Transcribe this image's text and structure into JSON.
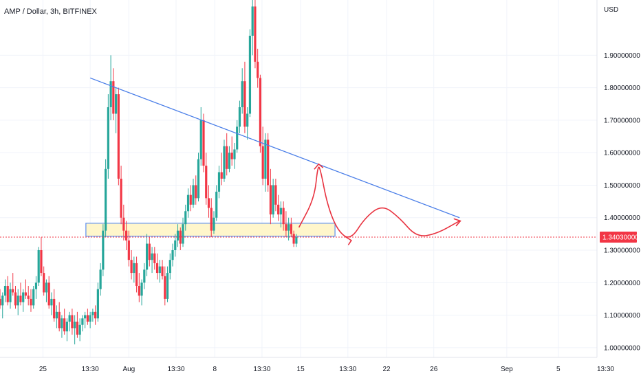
{
  "chart_data": {
    "type": "candlestick",
    "title": "AMP / Dollar, 3h, BITFINEX",
    "currency_label": "USD",
    "ylim": [
      0.97,
      2.07
    ],
    "y_ticks": [
      {
        "value": 1.0,
        "label": "1.00000000"
      },
      {
        "value": 1.1,
        "label": "1.10000000"
      },
      {
        "value": 1.2,
        "label": "1.20000000"
      },
      {
        "value": 1.3,
        "label": "1.30000000"
      },
      {
        "value": 1.4,
        "label": "1.40000000"
      },
      {
        "value": 1.5,
        "label": "1.50000000"
      },
      {
        "value": 1.6,
        "label": "1.60000000"
      },
      {
        "value": 1.7,
        "label": "1.70000000"
      },
      {
        "value": 1.8,
        "label": "1.80000000"
      },
      {
        "value": 1.9,
        "label": "1.90000000"
      }
    ],
    "xlim": [
      0,
      69.5
    ],
    "x_ticks": [
      {
        "t": 5.0,
        "label": "25"
      },
      {
        "t": 10.5,
        "label": "13:30"
      },
      {
        "t": 15.0,
        "label": "Aug"
      },
      {
        "t": 20.5,
        "label": "13:30"
      },
      {
        "t": 25.0,
        "label": "8"
      },
      {
        "t": 30.5,
        "label": "13:30"
      },
      {
        "t": 35.0,
        "label": "15"
      },
      {
        "t": 40.5,
        "label": "13:30"
      },
      {
        "t": 45.0,
        "label": "22"
      },
      {
        "t": 50.5,
        "label": "26"
      },
      {
        "t": 59.0,
        "label": "Sep"
      },
      {
        "t": 65.0,
        "label": "5"
      },
      {
        "t": 70.5,
        "label": "13:30"
      }
    ],
    "current_price": {
      "value": 1.3403,
      "label": "1.34030000",
      "color": "#f23645"
    },
    "colors": {
      "up": "#26a69a",
      "down": "#f23645",
      "trendline": "#4a7ee8",
      "zone_border": "#5b8def",
      "zone_fill": "#fff4c2",
      "annotation": "#e8323f"
    },
    "candles": [
      [
        0.0,
        1.15,
        1.18,
        1.12,
        1.13
      ],
      [
        0.3,
        1.13,
        1.17,
        1.09,
        1.16
      ],
      [
        0.6,
        1.16,
        1.21,
        1.14,
        1.19
      ],
      [
        0.9,
        1.19,
        1.22,
        1.13,
        1.14
      ],
      [
        1.2,
        1.14,
        1.2,
        1.12,
        1.18
      ],
      [
        1.5,
        1.18,
        1.23,
        1.16,
        1.17
      ],
      [
        1.8,
        1.17,
        1.19,
        1.12,
        1.13
      ],
      [
        2.1,
        1.13,
        1.18,
        1.1,
        1.16
      ],
      [
        2.4,
        1.16,
        1.2,
        1.13,
        1.14
      ],
      [
        2.7,
        1.14,
        1.18,
        1.11,
        1.17
      ],
      [
        3.0,
        1.17,
        1.21,
        1.15,
        1.16
      ],
      [
        3.3,
        1.16,
        1.19,
        1.13,
        1.15
      ],
      [
        3.6,
        1.15,
        1.18,
        1.11,
        1.13
      ],
      [
        3.9,
        1.13,
        1.19,
        1.12,
        1.18
      ],
      [
        4.2,
        1.18,
        1.22,
        1.15,
        1.2
      ],
      [
        4.5,
        1.2,
        1.31,
        1.19,
        1.3
      ],
      [
        4.8,
        1.3,
        1.34,
        1.22,
        1.23
      ],
      [
        5.1,
        1.23,
        1.25,
        1.16,
        1.17
      ],
      [
        5.4,
        1.17,
        1.21,
        1.14,
        1.2
      ],
      [
        5.7,
        1.2,
        1.22,
        1.12,
        1.13
      ],
      [
        6.0,
        1.13,
        1.17,
        1.1,
        1.15
      ],
      [
        6.3,
        1.15,
        1.18,
        1.08,
        1.09
      ],
      [
        6.6,
        1.09,
        1.13,
        1.06,
        1.11
      ],
      [
        6.9,
        1.11,
        1.14,
        1.05,
        1.06
      ],
      [
        7.2,
        1.06,
        1.1,
        1.03,
        1.09
      ],
      [
        7.5,
        1.09,
        1.12,
        1.04,
        1.05
      ],
      [
        7.8,
        1.05,
        1.09,
        1.02,
        1.08
      ],
      [
        8.1,
        1.08,
        1.11,
        1.05,
        1.1
      ],
      [
        8.4,
        1.1,
        1.12,
        1.04,
        1.06
      ],
      [
        8.7,
        1.06,
        1.1,
        1.01,
        1.08
      ],
      [
        9.0,
        1.08,
        1.11,
        1.03,
        1.04
      ],
      [
        9.3,
        1.04,
        1.09,
        1.02,
        1.07
      ],
      [
        9.6,
        1.07,
        1.1,
        1.05,
        1.09
      ],
      [
        9.9,
        1.09,
        1.11,
        1.06,
        1.1
      ],
      [
        10.2,
        1.1,
        1.12,
        1.07,
        1.08
      ],
      [
        10.5,
        1.08,
        1.11,
        1.06,
        1.1
      ],
      [
        10.8,
        1.1,
        1.12,
        1.08,
        1.11
      ],
      [
        11.1,
        1.11,
        1.13,
        1.07,
        1.09
      ],
      [
        11.4,
        1.09,
        1.2,
        1.08,
        1.18
      ],
      [
        11.7,
        1.18,
        1.26,
        1.16,
        1.24
      ],
      [
        12.0,
        1.24,
        1.38,
        1.22,
        1.36
      ],
      [
        12.3,
        1.36,
        1.58,
        1.34,
        1.55
      ],
      [
        12.6,
        1.55,
        1.78,
        1.52,
        1.74
      ],
      [
        12.9,
        1.74,
        1.9,
        1.7,
        1.82
      ],
      [
        13.2,
        1.82,
        1.86,
        1.7,
        1.72
      ],
      [
        13.5,
        1.72,
        1.8,
        1.66,
        1.78
      ],
      [
        13.8,
        1.78,
        1.8,
        1.5,
        1.52
      ],
      [
        14.1,
        1.52,
        1.56,
        1.38,
        1.4
      ],
      [
        14.4,
        1.4,
        1.44,
        1.33,
        1.36
      ],
      [
        14.7,
        1.36,
        1.39,
        1.3,
        1.33
      ],
      [
        15.0,
        1.33,
        1.36,
        1.25,
        1.27
      ],
      [
        15.3,
        1.27,
        1.3,
        1.21,
        1.23
      ],
      [
        15.6,
        1.23,
        1.28,
        1.2,
        1.26
      ],
      [
        15.9,
        1.26,
        1.28,
        1.17,
        1.19
      ],
      [
        16.2,
        1.19,
        1.23,
        1.14,
        1.16
      ],
      [
        16.5,
        1.16,
        1.21,
        1.13,
        1.2
      ],
      [
        16.8,
        1.2,
        1.26,
        1.18,
        1.24
      ],
      [
        17.1,
        1.24,
        1.35,
        1.22,
        1.32
      ],
      [
        17.4,
        1.32,
        1.34,
        1.25,
        1.27
      ],
      [
        17.7,
        1.27,
        1.31,
        1.23,
        1.29
      ],
      [
        18.0,
        1.29,
        1.31,
        1.24,
        1.26
      ],
      [
        18.3,
        1.26,
        1.29,
        1.21,
        1.23
      ],
      [
        18.6,
        1.23,
        1.27,
        1.2,
        1.25
      ],
      [
        18.9,
        1.25,
        1.27,
        1.21,
        1.22
      ],
      [
        19.2,
        1.22,
        1.25,
        1.13,
        1.15
      ],
      [
        19.5,
        1.15,
        1.25,
        1.14,
        1.23
      ],
      [
        19.8,
        1.23,
        1.29,
        1.21,
        1.27
      ],
      [
        20.1,
        1.27,
        1.32,
        1.25,
        1.3
      ],
      [
        20.4,
        1.3,
        1.35,
        1.28,
        1.33
      ],
      [
        20.7,
        1.33,
        1.38,
        1.31,
        1.36
      ],
      [
        21.0,
        1.36,
        1.37,
        1.3,
        1.32
      ],
      [
        21.3,
        1.32,
        1.4,
        1.31,
        1.38
      ],
      [
        21.6,
        1.38,
        1.44,
        1.36,
        1.42
      ],
      [
        21.9,
        1.42,
        1.49,
        1.4,
        1.47
      ],
      [
        22.2,
        1.47,
        1.5,
        1.42,
        1.44
      ],
      [
        22.5,
        1.44,
        1.52,
        1.43,
        1.5
      ],
      [
        22.8,
        1.5,
        1.53,
        1.44,
        1.46
      ],
      [
        23.1,
        1.46,
        1.6,
        1.45,
        1.58
      ],
      [
        23.4,
        1.58,
        1.74,
        1.56,
        1.7
      ],
      [
        23.7,
        1.7,
        1.72,
        1.54,
        1.56
      ],
      [
        24.0,
        1.56,
        1.6,
        1.44,
        1.46
      ],
      [
        24.3,
        1.46,
        1.5,
        1.4,
        1.43
      ],
      [
        24.6,
        1.43,
        1.46,
        1.34,
        1.36
      ],
      [
        24.9,
        1.36,
        1.42,
        1.35,
        1.4
      ],
      [
        25.2,
        1.4,
        1.5,
        1.39,
        1.48
      ],
      [
        25.5,
        1.48,
        1.56,
        1.46,
        1.54
      ],
      [
        25.8,
        1.54,
        1.6,
        1.5,
        1.52
      ],
      [
        26.1,
        1.52,
        1.64,
        1.51,
        1.62
      ],
      [
        26.4,
        1.62,
        1.66,
        1.53,
        1.55
      ],
      [
        26.7,
        1.55,
        1.62,
        1.54,
        1.6
      ],
      [
        27.0,
        1.6,
        1.65,
        1.56,
        1.58
      ],
      [
        27.3,
        1.58,
        1.63,
        1.55,
        1.61
      ],
      [
        27.6,
        1.61,
        1.7,
        1.6,
        1.68
      ],
      [
        27.9,
        1.68,
        1.76,
        1.66,
        1.74
      ],
      [
        28.2,
        1.74,
        1.86,
        1.72,
        1.82
      ],
      [
        28.5,
        1.82,
        1.88,
        1.66,
        1.68
      ],
      [
        28.8,
        1.68,
        1.74,
        1.64,
        1.72
      ],
      [
        29.1,
        1.72,
        1.98,
        1.71,
        1.96
      ],
      [
        29.4,
        1.96,
        2.07,
        1.9,
        2.05
      ],
      [
        29.7,
        2.05,
        2.07,
        1.86,
        1.88
      ],
      [
        30.0,
        1.88,
        1.92,
        1.8,
        1.83
      ],
      [
        30.3,
        1.83,
        1.84,
        1.6,
        1.62
      ],
      [
        30.6,
        1.62,
        1.68,
        1.5,
        1.52
      ],
      [
        30.9,
        1.52,
        1.66,
        1.48,
        1.64
      ],
      [
        31.2,
        1.64,
        1.66,
        1.48,
        1.5
      ],
      [
        31.5,
        1.5,
        1.55,
        1.38,
        1.41
      ],
      [
        31.8,
        1.41,
        1.52,
        1.4,
        1.5
      ],
      [
        32.1,
        1.5,
        1.52,
        1.42,
        1.44
      ],
      [
        32.4,
        1.44,
        1.47,
        1.39,
        1.41
      ],
      [
        32.7,
        1.41,
        1.45,
        1.37,
        1.43
      ],
      [
        33.0,
        1.43,
        1.45,
        1.36,
        1.38
      ],
      [
        33.3,
        1.38,
        1.42,
        1.34,
        1.36
      ],
      [
        33.6,
        1.36,
        1.4,
        1.33,
        1.38
      ],
      [
        33.9,
        1.38,
        1.4,
        1.34,
        1.35
      ],
      [
        34.2,
        1.35,
        1.36,
        1.31,
        1.32
      ],
      [
        34.5,
        1.32,
        1.35,
        1.31,
        1.34
      ]
    ]
  },
  "annotations": {
    "trendline": {
      "from": [
        10.5,
        1.83
      ],
      "to": [
        53.5,
        1.4
      ]
    },
    "support_zone": {
      "t_from": 10.0,
      "t_to": 39.0,
      "y_from": 1.343,
      "y_to": 1.383
    },
    "projection_path": [
      [
        34.8,
        1.37
      ],
      [
        36.6,
        1.46
      ],
      [
        37.0,
        1.56
      ],
      [
        37.3,
        1.55
      ],
      [
        38.1,
        1.44
      ],
      [
        39.3,
        1.36
      ],
      [
        40.8,
        1.33
      ],
      [
        42.5,
        1.4
      ],
      [
        44.5,
        1.44
      ],
      [
        46.5,
        1.4
      ],
      [
        48.5,
        1.34
      ],
      [
        50.8,
        1.35
      ],
      [
        53.5,
        1.39
      ]
    ],
    "arrowheads": [
      {
        "at": [
          37.1,
          1.565
        ],
        "dir": "up"
      },
      {
        "at": [
          40.9,
          1.33
        ],
        "dir": "right-down"
      },
      {
        "at": [
          53.6,
          1.39
        ],
        "dir": "right-up"
      }
    ]
  }
}
